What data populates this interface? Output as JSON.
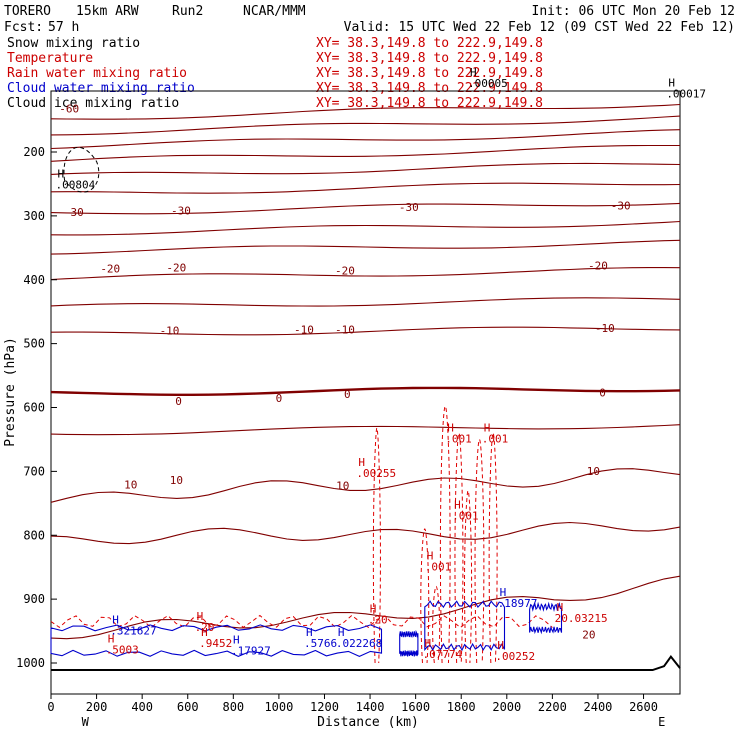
{
  "header": {
    "model": "TORERO",
    "resolution": "15km ARW",
    "run": "Run2",
    "org": "NCAR/MMM",
    "init": "Init: 06 UTC Mon 20 Feb 12",
    "fcst_label": "Fcst:",
    "fcst_value": "57 h",
    "valid": "Valid: 15 UTC Wed 22 Feb 12 (09 CST Wed 22 Feb 12)"
  },
  "legend": [
    {
      "name": "Snow mixing ratio",
      "xy": "XY=  38.3,149.8 to 222.9,149.8",
      "color": "#000000"
    },
    {
      "name": "Temperature",
      "xy": "XY=  38.3,149.8 to 222.9,149.8",
      "color": "#cc0000"
    },
    {
      "name": "Rain water mixing ratio",
      "xy": "XY=  38.3,149.8 to 222.9,149.8",
      "color": "#cc0000"
    },
    {
      "name": "Cloud water mixing ratio",
      "xy": "XY=  38.3,149.8 to 222.9,149.8",
      "color": "#0000cc"
    },
    {
      "name": "Cloud ice mixing ratio",
      "xy": "XY=  38.3,149.8 to 222.9,149.8",
      "color": "#000000"
    }
  ],
  "colors": {
    "temperature": "#800000",
    "rain": "#e00000",
    "cloud_water": "#0000cc",
    "ice": "#000000",
    "axis": "#000000"
  },
  "chart_data": {
    "type": "contour",
    "xlabel": "Distance (km)",
    "ylabel": "Pressure (hPa)",
    "xlim": [
      0,
      2760
    ],
    "ylim": [
      1020,
      100
    ],
    "x_ticks": [
      0,
      200,
      400,
      600,
      800,
      1000,
      1200,
      1400,
      1600,
      1800,
      2000,
      2200,
      2400,
      2600
    ],
    "y_ticks": [
      200,
      300,
      400,
      500,
      600,
      700,
      800,
      900,
      1000
    ],
    "y_tick_labels": [
      "200",
      "300",
      "400",
      "500",
      "600",
      "700",
      "800",
      "900",
      "1000"
    ],
    "x_end_labels": {
      "left": "W",
      "right": "E"
    },
    "temperature_isotherms": [
      {
        "value": -60,
        "label": "-60",
        "pressure_left": 148,
        "pressure_right": 124
      },
      {
        "value": -55,
        "label": "",
        "pressure_left": 170,
        "pressure_right": 146
      },
      {
        "value": -50,
        "label": "",
        "pressure_left": 191,
        "pressure_right": 169
      },
      {
        "value": -45,
        "label": "",
        "pressure_left": 214,
        "pressure_right": 192
      },
      {
        "value": -40,
        "label": "",
        "pressure_left": 238,
        "pressure_right": 218
      },
      {
        "value": -35,
        "label": "",
        "pressure_left": 266,
        "pressure_right": 247
      },
      {
        "value": -30,
        "label": "-30",
        "pressure_left": 296,
        "pressure_right": 278
      },
      {
        "value": -25,
        "label": "",
        "pressure_left": 327,
        "pressure_right": 310
      },
      {
        "value": -20,
        "label": "-20",
        "pressure_left": 356,
        "pressure_right": 342
      },
      {
        "value": -15,
        "label": "",
        "pressure_left": 398,
        "pressure_right": 384
      },
      {
        "value": -10,
        "label": "-10",
        "pressure_left": 443,
        "pressure_right": 430
      },
      {
        "value": -5,
        "label": "",
        "pressure_left": 486,
        "pressure_right": 475
      },
      {
        "value": 0,
        "label": "0",
        "pressure_left": 578,
        "pressure_right": 570
      },
      {
        "value": 5,
        "label": "",
        "pressure_left": 640,
        "pressure_right": 627
      },
      {
        "value": 10,
        "label": "10",
        "pressure_left": 742,
        "pressure_right": 702
      },
      {
        "value": 15,
        "label": "",
        "pressure_left": 808,
        "pressure_right": 787
      },
      {
        "value": 20,
        "label": "20",
        "pressure_left": 957,
        "pressure_right": 890
      }
    ],
    "isotherm_labels": [
      {
        "text": "-60",
        "x": 80,
        "p": 138
      },
      {
        "text": "-30",
        "x": 100,
        "p": 300
      },
      {
        "text": "-30",
        "x": 570,
        "p": 298
      },
      {
        "text": "-30",
        "x": 1570,
        "p": 292
      },
      {
        "text": "-30",
        "x": 2500,
        "p": 290
      },
      {
        "text": "-20",
        "x": 260,
        "p": 389
      },
      {
        "text": "-20",
        "x": 550,
        "p": 387
      },
      {
        "text": "-20",
        "x": 1290,
        "p": 392
      },
      {
        "text": "-20",
        "x": 2400,
        "p": 384
      },
      {
        "text": "-10",
        "x": 520,
        "p": 486
      },
      {
        "text": "-10",
        "x": 1110,
        "p": 484
      },
      {
        "text": "-10",
        "x": 1290,
        "p": 484
      },
      {
        "text": "-10",
        "x": 2430,
        "p": 482
      },
      {
        "text": "0",
        "x": 560,
        "p": 596
      },
      {
        "text": "0",
        "x": 1000,
        "p": 591
      },
      {
        "text": "0",
        "x": 1300,
        "p": 585
      },
      {
        "text": "0",
        "x": 2420,
        "p": 583
      },
      {
        "text": "10",
        "x": 350,
        "p": 727
      },
      {
        "text": "10",
        "x": 550,
        "p": 720
      },
      {
        "text": "10",
        "x": 1280,
        "p": 728
      },
      {
        "text": "10",
        "x": 2380,
        "p": 706
      },
      {
        "text": "20",
        "x": 2360,
        "p": 962
      }
    ],
    "maxima_labels": [
      {
        "text": ".00017",
        "x": 2700,
        "p": 115,
        "color": "#000000"
      },
      {
        "text": ".00005",
        "x": 1830,
        "p": 98,
        "color": "#000000"
      },
      {
        "text": ".00804",
        "x": 20,
        "p": 257,
        "color": "#000000"
      },
      {
        "text": ".00255",
        "x": 1340,
        "p": 709,
        "color": "#cc0000"
      },
      {
        "text": ".001",
        "x": 1730,
        "p": 655,
        "color": "#cc0000"
      },
      {
        "text": ".001",
        "x": 1890,
        "p": 655,
        "color": "#cc0000"
      },
      {
        "text": ".001",
        "x": 1760,
        "p": 775,
        "color": "#cc0000"
      },
      {
        "text": ".001",
        "x": 1640,
        "p": 855,
        "color": "#cc0000"
      },
      {
        "text": ".321627",
        "x": 260,
        "p": 955,
        "color": "#0000cc"
      },
      {
        "text": ".5003",
        "x": 240,
        "p": 985,
        "color": "#cc0000"
      },
      {
        "text": ".5766",
        "x": 1110,
        "p": 975,
        "color": "#0000cc"
      },
      {
        "text": ".17927",
        "x": 790,
        "p": 987,
        "color": "#0000cc"
      },
      {
        "text": ".022268",
        "x": 1250,
        "p": 975,
        "color": "#0000cc"
      },
      {
        "text": ".9452",
        "x": 650,
        "p": 975,
        "color": "#cc0000"
      },
      {
        "text": ".07774",
        "x": 1630,
        "p": 992,
        "color": "#cc0000"
      },
      {
        "text": ".18977",
        "x": 1960,
        "p": 912,
        "color": "#0000cc"
      },
      {
        "text": "20.03215",
        "x": 2210,
        "p": 936,
        "color": "#cc0000"
      },
      {
        "text": ".00252",
        "x": 1950,
        "p": 995,
        "color": "#cc0000"
      },
      {
        "text": ".20",
        "x": 630,
        "p": 950,
        "color": "#cc0000"
      },
      {
        "text": ".20",
        "x": 1390,
        "p": 938,
        "color": "#cc0000"
      }
    ]
  }
}
